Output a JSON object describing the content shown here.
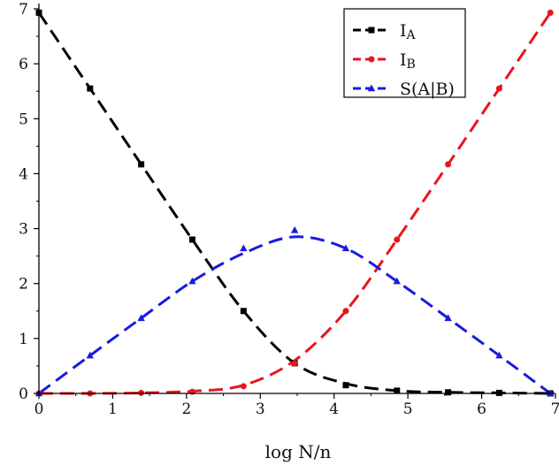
{
  "chart_data": {
    "type": "line",
    "title": "",
    "xlabel": "log N/n",
    "ylabel": "",
    "xlim": [
      0,
      7
    ],
    "ylim": [
      0,
      7
    ],
    "xticks": [
      0,
      1,
      2,
      3,
      4,
      5,
      6,
      7
    ],
    "yticks": [
      0,
      1,
      2,
      3,
      4,
      5,
      6,
      7
    ],
    "grid": false,
    "legend_position": "top-right",
    "x": [
      0,
      0.693,
      1.386,
      2.079,
      2.773,
      3.466,
      4.159,
      4.852,
      5.545,
      6.238,
      6.931
    ],
    "series": [
      {
        "name": "IA",
        "legend_main": "I",
        "legend_sub": "A",
        "color": "#000000",
        "marker": "square",
        "values": [
          6.93,
          5.55,
          4.17,
          2.8,
          1.5,
          0.55,
          0.15,
          0.05,
          0.02,
          0.01,
          0.0
        ],
        "fit": [
          6.93,
          5.55,
          4.17,
          2.8,
          1.5,
          0.55,
          0.18,
          0.05,
          0.02,
          0.01,
          0.0
        ]
      },
      {
        "name": "IB",
        "legend_main": "I",
        "legend_sub": "B",
        "color": "#e8141e",
        "marker": "circle",
        "values": [
          0.0,
          0.0,
          0.01,
          0.03,
          0.13,
          0.55,
          1.5,
          2.8,
          4.17,
          5.55,
          6.93
        ],
        "fit": [
          0.0,
          0.0,
          0.01,
          0.04,
          0.15,
          0.6,
          1.5,
          2.8,
          4.17,
          5.55,
          6.93
        ]
      },
      {
        "name": "S(A|B)",
        "legend_main": "S(A|B)",
        "legend_sub": "",
        "color": "#1a1ae0",
        "marker": "triangle",
        "values": [
          0.0,
          0.69,
          1.37,
          2.04,
          2.64,
          2.97,
          2.64,
          2.04,
          1.37,
          0.69,
          0.0
        ],
        "fit": [
          0.0,
          0.69,
          1.37,
          2.04,
          2.55,
          2.85,
          2.64,
          2.04,
          1.37,
          0.69,
          0.0
        ]
      }
    ]
  }
}
